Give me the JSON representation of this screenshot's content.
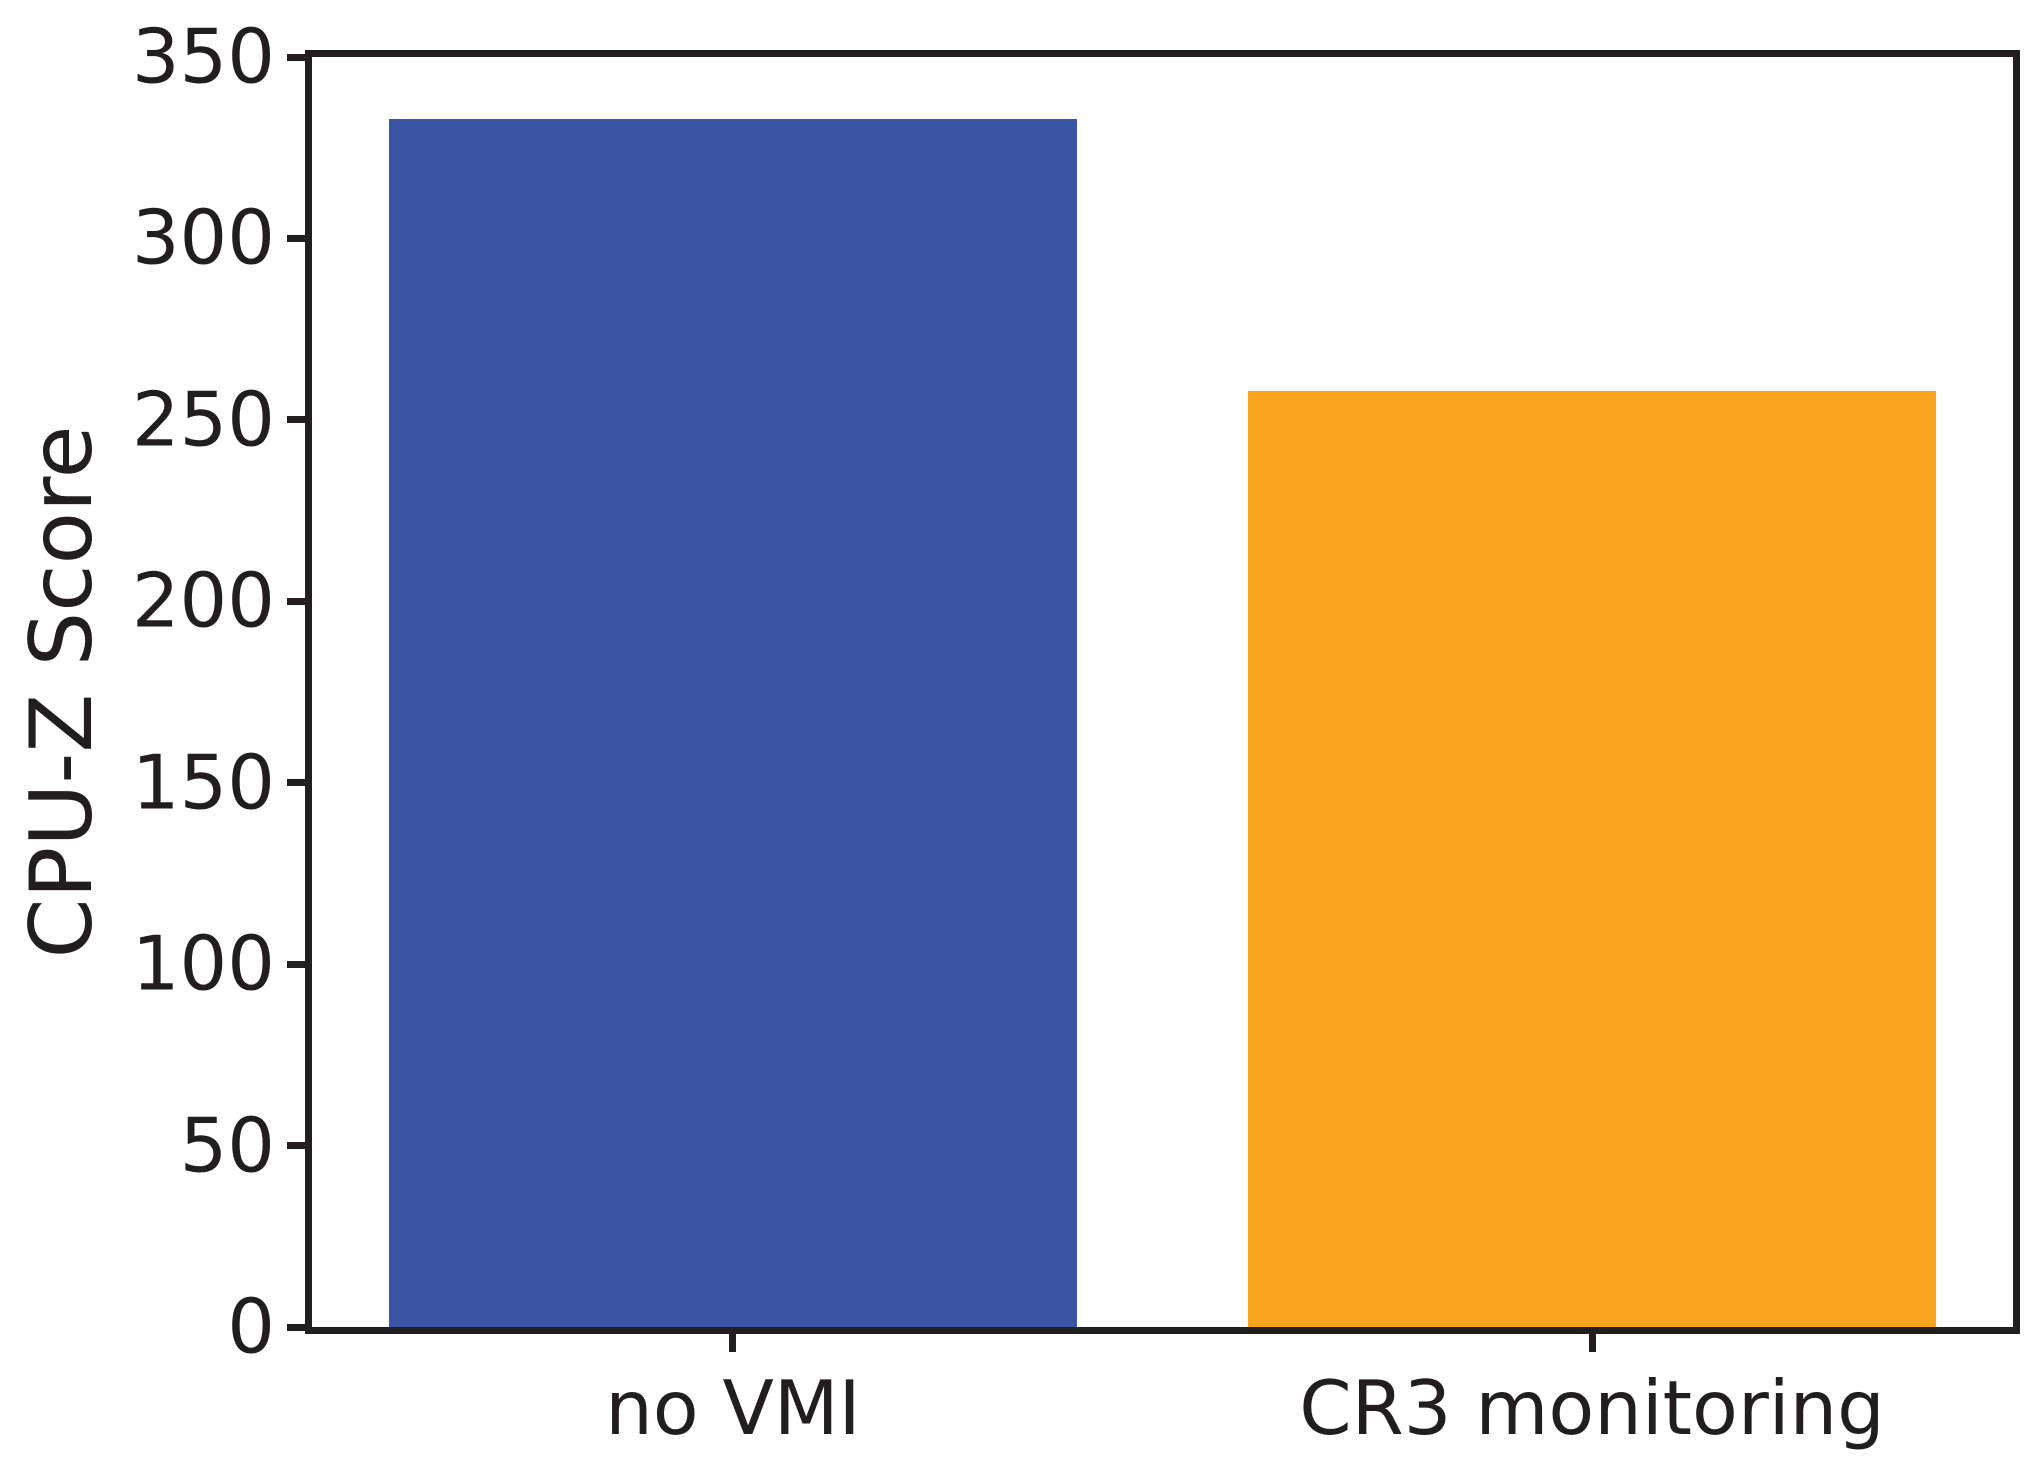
{
  "chart_data": {
    "type": "bar",
    "title": "",
    "xlabel": "",
    "ylabel": "CPU-Z Score",
    "categories": [
      "no VMI",
      "CR3 monitoring"
    ],
    "values": [
      333,
      258
    ],
    "bar_colors": [
      "#3a55a4",
      "#f9a51e"
    ],
    "ylim": [
      0,
      350
    ],
    "yticks": [
      0,
      50,
      100,
      150,
      200,
      250,
      300,
      350
    ],
    "grid": false,
    "legend": null,
    "axis_color": "#221e1f",
    "background_color": "#ffffff",
    "bar_width_fraction": 0.8
  }
}
